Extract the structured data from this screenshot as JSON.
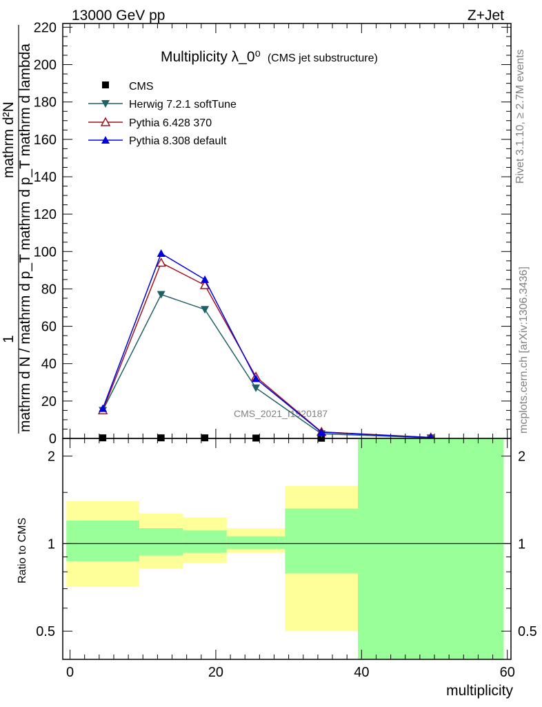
{
  "header": {
    "left": "13000 GeV pp",
    "right": "Z+Jet"
  },
  "side_labels": {
    "rivet": "Rivet 3.1.10, ≥ 2.7M events",
    "mcplots": "mcplots.cern.ch [arXiv:1306.3436]"
  },
  "colors": {
    "cms": "#000000",
    "herwig": "#1f5f66",
    "pythia6": "#a0101c",
    "pythia8": "#0000dd",
    "band_inner": "#99ff99",
    "band_outer": "#ffff99"
  },
  "chart_data": [
    {
      "type": "line",
      "title": "Multiplicity λ_0⁰",
      "subtitle": "(CMS jet substructure)",
      "xlabel": "",
      "ylabel": {
        "numerator": "1",
        "denominator": "mathrm d N / mathrm d p_T mathrm d p_T mathrm d lambda",
        "top_numerator": "mathrm d²N"
      },
      "xlim": [
        -1,
        60.5
      ],
      "ylim": [
        0,
        222
      ],
      "y_ticks": [
        0,
        20,
        40,
        60,
        80,
        100,
        120,
        140,
        160,
        180,
        200,
        220
      ],
      "watermark": "CMS_2021_I1920187",
      "legend_position": "top-left",
      "series": [
        {
          "name": "CMS",
          "marker": "square",
          "color": "#000000",
          "x": [
            4.5,
            12.5,
            18.5,
            25.5,
            34.5,
            49.5
          ],
          "y": [
            0.3,
            0.3,
            0.3,
            0.2,
            0.1,
            0.0
          ]
        },
        {
          "name": "Herwig 7.2.1 softTune",
          "marker": "triangle-down",
          "color": "#1f5f66",
          "x": [
            4.5,
            12.5,
            18.5,
            25.5,
            34.5,
            49.5
          ],
          "y": [
            15,
            77,
            69,
            27,
            2.5,
            0.3
          ]
        },
        {
          "name": "Pythia 6.428 370",
          "marker": "triangle-up-open",
          "color": "#a0101c",
          "x": [
            4.5,
            12.5,
            18.5,
            25.5,
            34.5,
            49.5
          ],
          "y": [
            15,
            94,
            82,
            33,
            3.5,
            0.5
          ]
        },
        {
          "name": "Pythia 8.308 default",
          "marker": "triangle-up",
          "color": "#0000dd",
          "x": [
            4.5,
            12.5,
            18.5,
            25.5,
            34.5,
            49.5
          ],
          "y": [
            16,
            99,
            85,
            32,
            3.3,
            0.5
          ]
        }
      ]
    },
    {
      "type": "area",
      "xlabel": "multiplicity",
      "ylabel": "Ratio to CMS",
      "xlim": [
        -1,
        60.5
      ],
      "ylim": [
        0.4,
        2.3
      ],
      "log_y": true,
      "x_ticks": [
        0,
        20,
        40,
        60
      ],
      "y_ticks": [
        0.5,
        1,
        2
      ],
      "bins": [
        {
          "x0": -0.5,
          "x1": 9.5,
          "outer": [
            0.71,
            1.4
          ],
          "inner": [
            0.87,
            1.2
          ]
        },
        {
          "x0": 9.5,
          "x1": 15.5,
          "outer": [
            0.82,
            1.27
          ],
          "inner": [
            0.91,
            1.13
          ]
        },
        {
          "x0": 15.5,
          "x1": 21.5,
          "outer": [
            0.86,
            1.23
          ],
          "inner": [
            0.93,
            1.11
          ]
        },
        {
          "x0": 21.5,
          "x1": 29.5,
          "outer": [
            0.93,
            1.13
          ],
          "inner": [
            0.96,
            1.06
          ]
        },
        {
          "x0": 29.5,
          "x1": 39.5,
          "outer": [
            0.5,
            1.58
          ],
          "inner": [
            0.79,
            1.32
          ]
        },
        {
          "x0": 39.5,
          "x1": 59.5,
          "outer": [
            0.3,
            2.4
          ],
          "inner": [
            0.3,
            2.4
          ]
        }
      ],
      "reference": 1
    }
  ]
}
